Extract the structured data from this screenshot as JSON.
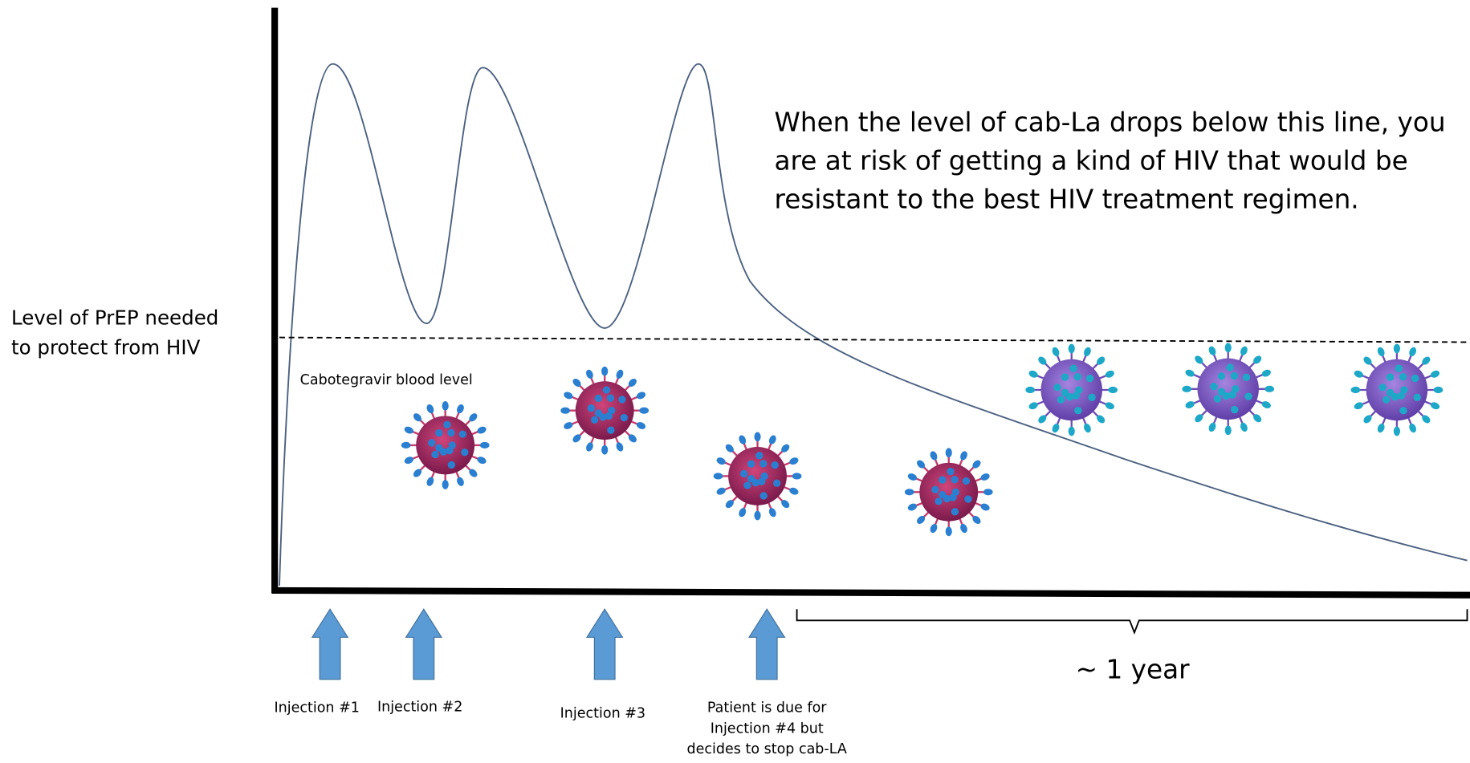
{
  "threshold_label": {
    "lines": [
      "Level of PrEP needed",
      "to protect from HIV"
    ]
  },
  "curve_label": "Cabotegravir blood level",
  "annotation": {
    "lines": [
      "When the level of cab-La drops below this line, you",
      "are at risk of getting a kind of HIV that would be",
      "resistant to the best HIV treatment regimen."
    ]
  },
  "injections": [
    {
      "lines": [
        "Injection #1"
      ]
    },
    {
      "lines": [
        "Injection #2"
      ]
    },
    {
      "lines": [
        "Injection #3"
      ]
    },
    {
      "lines": [
        "Patient is due for",
        "Injection #4 but",
        "decides to stop cab-LA"
      ]
    }
  ],
  "duration_label": "~ 1 year"
}
